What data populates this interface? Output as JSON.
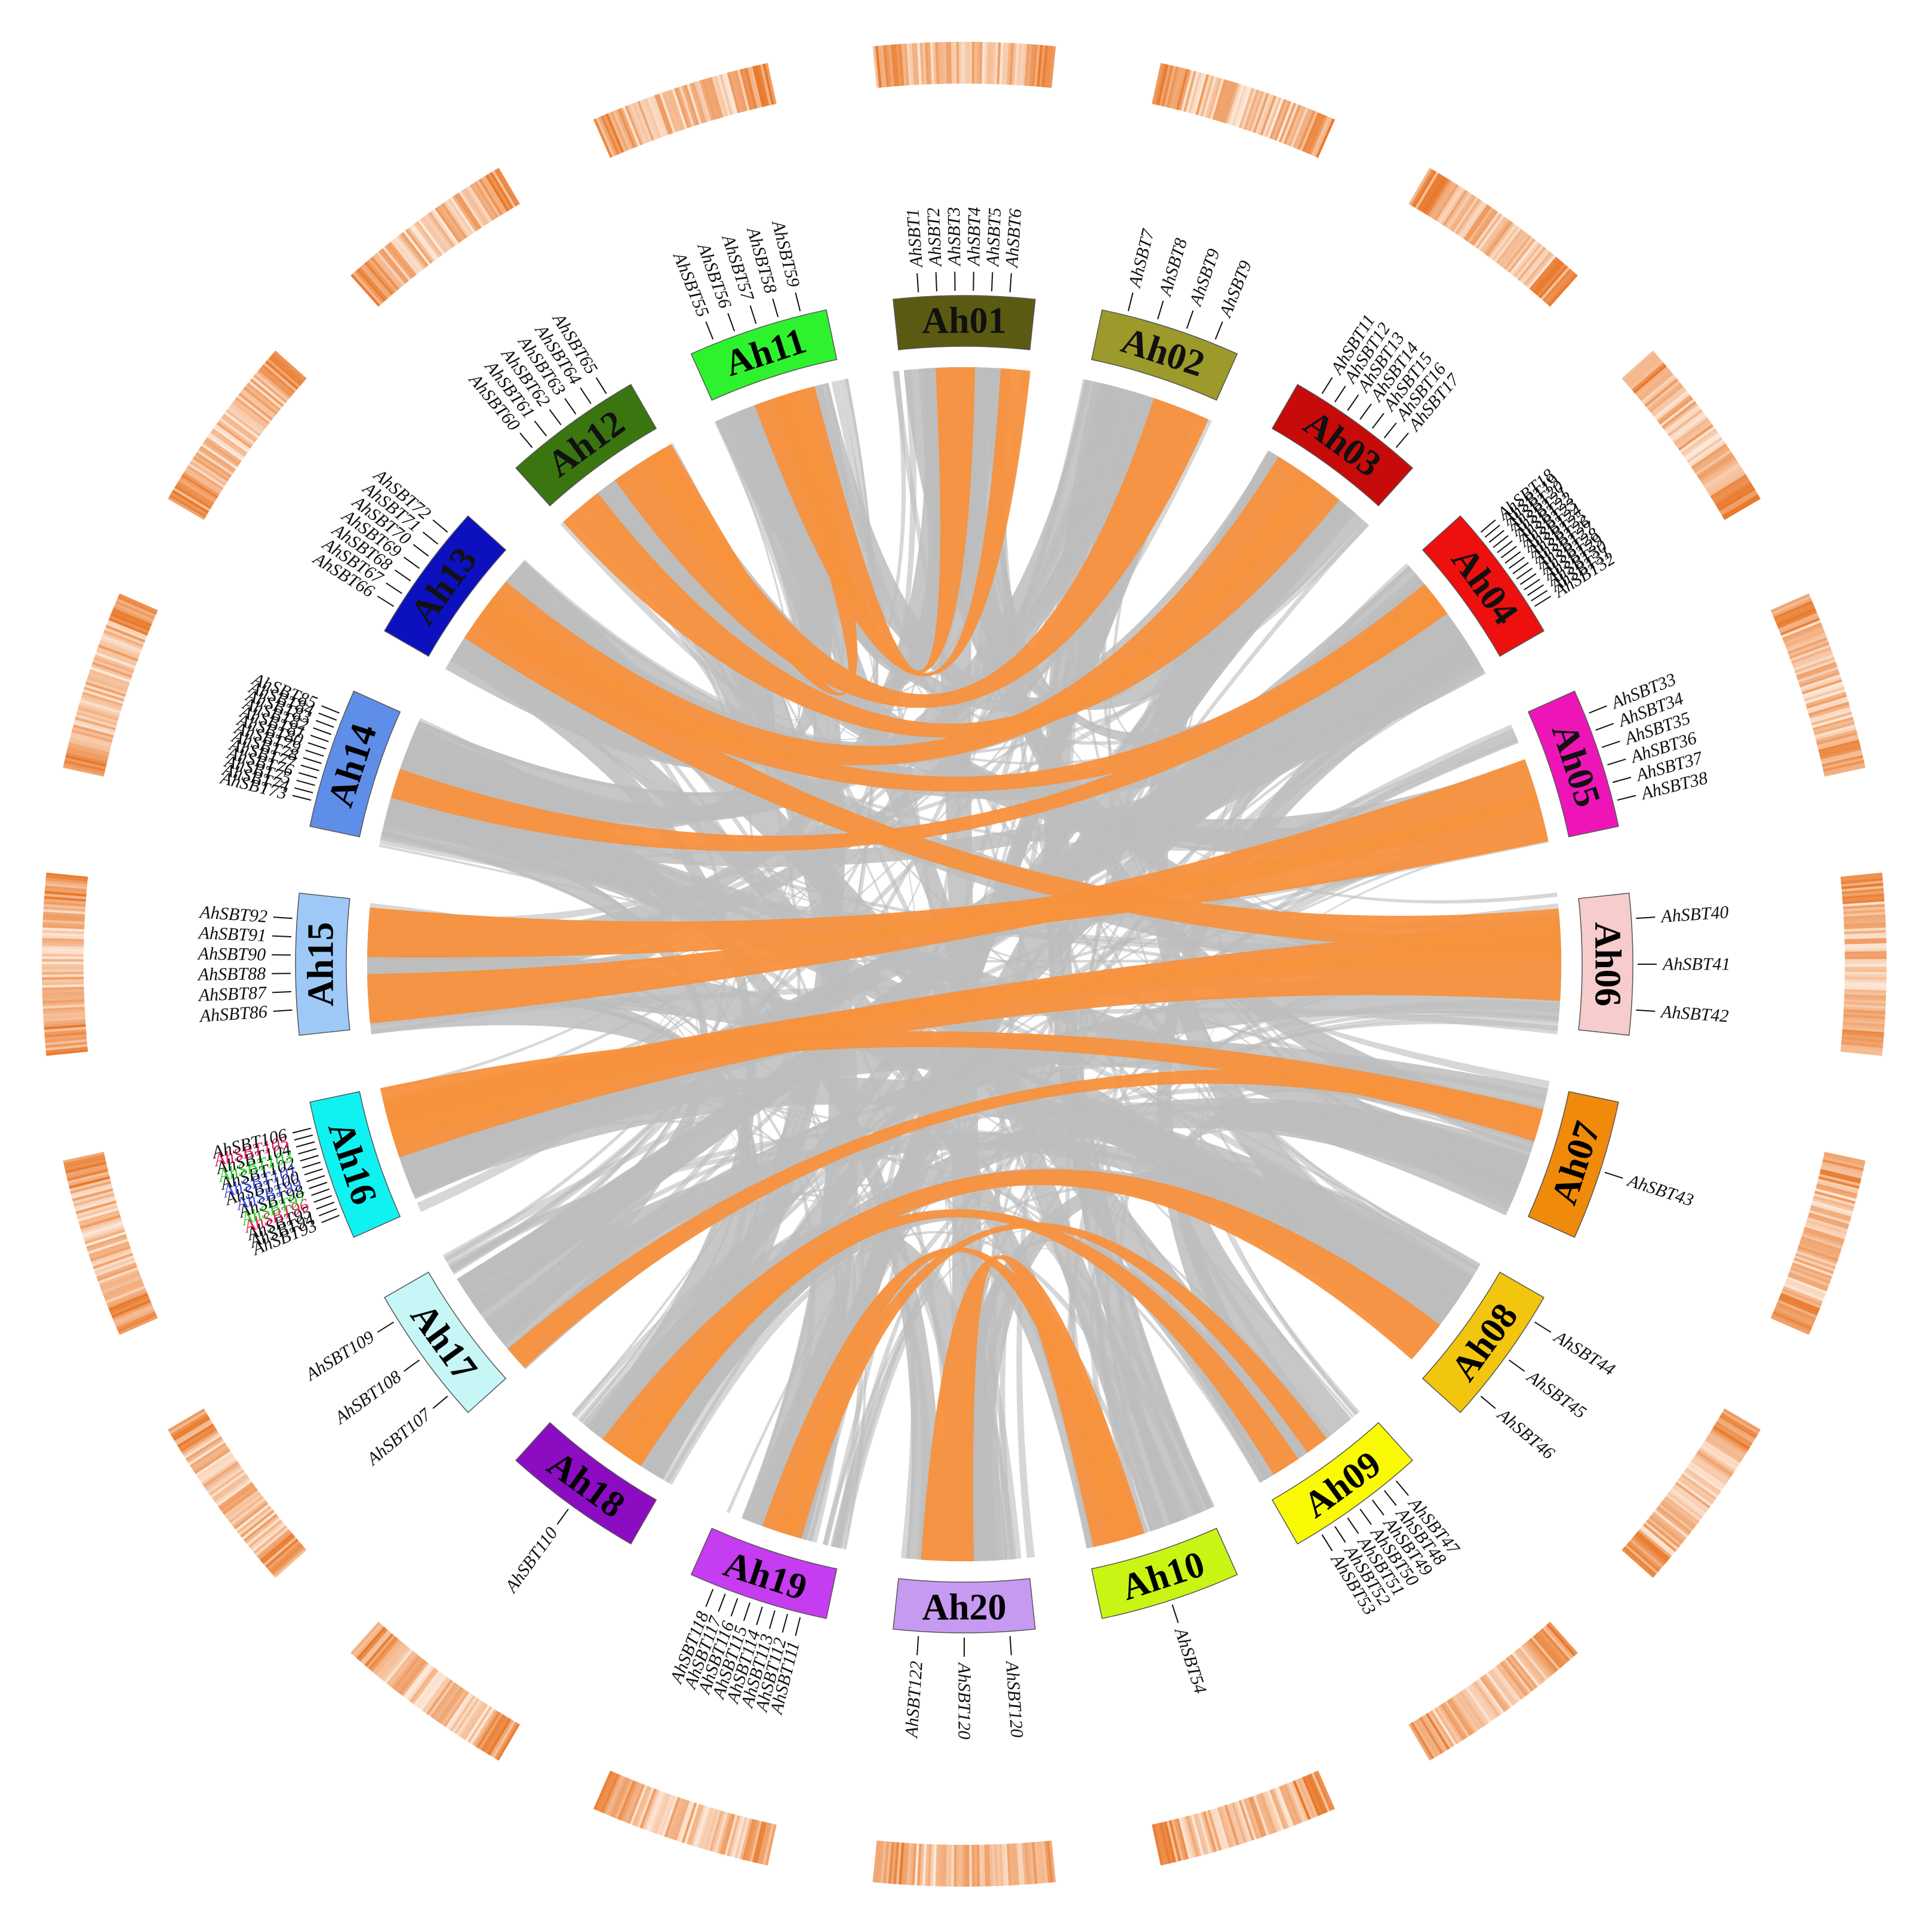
{
  "chromosomes": [
    {
      "id": "Ah01",
      "label": "Ah01",
      "color": "#5c5a12",
      "dark_text": false
    },
    {
      "id": "Ah02",
      "label": "Ah02",
      "color": "#9b9a2a",
      "dark_text": false
    },
    {
      "id": "Ah03",
      "label": "Ah03",
      "color": "#c70a0a",
      "dark_text": false
    },
    {
      "id": "Ah04",
      "label": "Ah04",
      "color": "#ee0f0f",
      "dark_text": false
    },
    {
      "id": "Ah05",
      "label": "Ah05",
      "color": "#ee15b8",
      "dark_text": false
    },
    {
      "id": "Ah06",
      "label": "Ah06",
      "color": "#f7cccc",
      "dark_text": true
    },
    {
      "id": "Ah07",
      "label": "Ah07",
      "color": "#f08a0a",
      "dark_text": true
    },
    {
      "id": "Ah08",
      "label": "Ah08",
      "color": "#f2c60f",
      "dark_text": true
    },
    {
      "id": "Ah09",
      "label": "Ah09",
      "color": "#fafa05",
      "dark_text": true
    },
    {
      "id": "Ah10",
      "label": "Ah10",
      "color": "#c8f514",
      "dark_text": true
    },
    {
      "id": "Ah20",
      "label": "Ah20",
      "color": "#c79af2",
      "dark_text": true
    },
    {
      "id": "Ah19",
      "label": "Ah19",
      "color": "#c63cf0",
      "dark_text": true
    },
    {
      "id": "Ah18",
      "label": "Ah18",
      "color": "#8c0cc2",
      "dark_text": true
    },
    {
      "id": "Ah17",
      "label": "Ah17",
      "color": "#c7f6f6",
      "dark_text": true
    },
    {
      "id": "Ah16",
      "label": "Ah16",
      "color": "#10f2f2",
      "dark_text": true
    },
    {
      "id": "Ah15",
      "label": "Ah15",
      "color": "#9ec9f7",
      "dark_text": true
    },
    {
      "id": "Ah14",
      "label": "Ah14",
      "color": "#5f8ee8",
      "dark_text": true
    },
    {
      "id": "Ah13",
      "label": "Ah13",
      "color": "#0c10bf",
      "dark_text": false
    },
    {
      "id": "Ah12",
      "label": "Ah12",
      "color": "#3a7510",
      "dark_text": false
    },
    {
      "id": "Ah11",
      "label": "Ah11",
      "color": "#2ef22e",
      "dark_text": true
    }
  ],
  "genes": [
    {
      "chrom": "Ah01",
      "labels": [
        "AhSBT1",
        "AhSBT2",
        "AhSBT3",
        "AhSBT4",
        "AhSBT5",
        "AhSBT6"
      ]
    },
    {
      "chrom": "Ah02",
      "labels": [
        "AhSBT7",
        "AhSBT8",
        "AhSBT9",
        "AhSBT9"
      ]
    },
    {
      "chrom": "Ah03",
      "labels": [
        "AhSBT11",
        "AhSBT12",
        "AhSBT13",
        "AhSBT14",
        "AhSBT15",
        "AhSBT16",
        "AhSBT17"
      ]
    },
    {
      "chrom": "Ah04",
      "labels": [
        "AhSBT18",
        "AhSBT19",
        "AhSBT20",
        "AhSBT21",
        "AhSBT22",
        "AhSBT23",
        "AhSBT24",
        "AhSBT25",
        "AhSBT26",
        "AhSBT27",
        "AhSBT28",
        "AhSBT29",
        "AhSBT30",
        "AhSBT31",
        "AhSBT32"
      ]
    },
    {
      "chrom": "Ah05",
      "labels": [
        "AhSBT33",
        "AhSBT34",
        "AhSBT35",
        "AhSBT36",
        "AhSBT37",
        "AhSBT38"
      ]
    },
    {
      "chrom": "Ah06",
      "labels": [
        "AhSBT40",
        "AhSBT41",
        "AhSBT42"
      ]
    },
    {
      "chrom": "Ah07",
      "labels": [
        "AhSBT43"
      ]
    },
    {
      "chrom": "Ah08",
      "labels": [
        "AhSBT44",
        "AhSBT45",
        "AhSBT46"
      ]
    },
    {
      "chrom": "Ah09",
      "labels": [
        "AhSBT47",
        "AhSBT48",
        "AhSBT49",
        "AhSBT50",
        "AhSBT51",
        "AhSBT52",
        "AhSBT53"
      ]
    },
    {
      "chrom": "Ah10",
      "labels": [
        "AhSBT54"
      ]
    },
    {
      "chrom": "Ah20",
      "labels": [
        "AhSBT120",
        "AhSBT120",
        "AhSBT122"
      ]
    },
    {
      "chrom": "Ah19",
      "labels": [
        "AhSBT111",
        "AhSBT112",
        "AhSBT113",
        "AhSBT114",
        "AhSBT115",
        "AhSBT116",
        "AhSBT117",
        "AhSBT118"
      ]
    },
    {
      "chrom": "Ah18",
      "labels": [
        "AhSBT110"
      ]
    },
    {
      "chrom": "Ah17",
      "labels": [
        "AhSBT107",
        "AhSBT108",
        "AhSBT109"
      ]
    },
    {
      "chrom": "Ah16",
      "labels": [
        "AhSBT93",
        "AhSBT94",
        "AhSBT95",
        "AhSBT96",
        "AhSBT97",
        "AhSBT98",
        "AhSBT99",
        "AhSBT100",
        "AhSBT101",
        "AhSBT102",
        "AhSBT103",
        "AhSBT104",
        "AhSBT105",
        "AhSBT106"
      ]
    },
    {
      "chrom": "Ah15",
      "labels": [
        "AhSBT86",
        "AhSBT87",
        "AhSBT88",
        "AhSBT90",
        "AhSBT91",
        "AhSBT92"
      ]
    },
    {
      "chrom": "Ah14",
      "labels": [
        "AhSBT73",
        "AhSBT74",
        "AhSBT75",
        "AhSBT76",
        "AhSBT77",
        "AhSBT78",
        "AhSBT79",
        "AhSBT80",
        "AhSBT81",
        "AhSBT82",
        "AhSBT83",
        "AhSBT84",
        "AhSBT85"
      ]
    },
    {
      "chrom": "Ah13",
      "labels": [
        "AhSBT66",
        "AhSBT67",
        "AhSBT68",
        "AhSBT69",
        "AhSBT70",
        "AhSBT71",
        "AhSBT72"
      ]
    },
    {
      "chrom": "Ah12",
      "labels": [
        "AhSBT60",
        "AhSBT61",
        "AhSBT62",
        "AhSBT63",
        "AhSBT64",
        "AhSBT65"
      ]
    },
    {
      "chrom": "Ah11",
      "labels": [
        "AhSBT55",
        "AhSBT56",
        "AhSBT57",
        "AhSBT58",
        "AhSBT59"
      ]
    }
  ],
  "highlight_colors": {
    "AhSBT105": "#e8195a",
    "AhSBT96": "#e8195a",
    "AhSBT103": "#22d422",
    "AhSBT97": "#22d422",
    "AhSBT101": "#3a4ee0",
    "AhSBT99": "#3a4ee0"
  },
  "link_colors": {
    "background": "#bdbdbd",
    "highlight": "#f7913d"
  },
  "density_color": "#e8782a",
  "highlight_links": [
    [
      "Ah01",
      "Ah11"
    ],
    [
      "Ah01",
      "Ah11"
    ],
    [
      "Ah02",
      "Ah12"
    ],
    [
      "Ah03",
      "Ah13"
    ],
    [
      "Ah04",
      "Ah14"
    ],
    [
      "Ah05",
      "Ah15"
    ],
    [
      "Ah06",
      "Ah16"
    ],
    [
      "Ah06",
      "Ah13"
    ],
    [
      "Ah07",
      "Ah17"
    ],
    [
      "Ah08",
      "Ah18"
    ],
    [
      "Ah09",
      "Ah19"
    ],
    [
      "Ah10",
      "Ah20"
    ],
    [
      "Ah15",
      "Ah05"
    ],
    [
      "Ah16",
      "Ah06"
    ],
    [
      "Ah09",
      "Ah18"
    ],
    [
      "Ah19",
      "Ah10"
    ],
    [
      "Ah03",
      "Ah12"
    ],
    [
      "Ah04",
      "Ah13"
    ],
    [
      "Ah11",
      "Ah12"
    ],
    [
      "Ah16",
      "Ah07"
    ]
  ]
}
